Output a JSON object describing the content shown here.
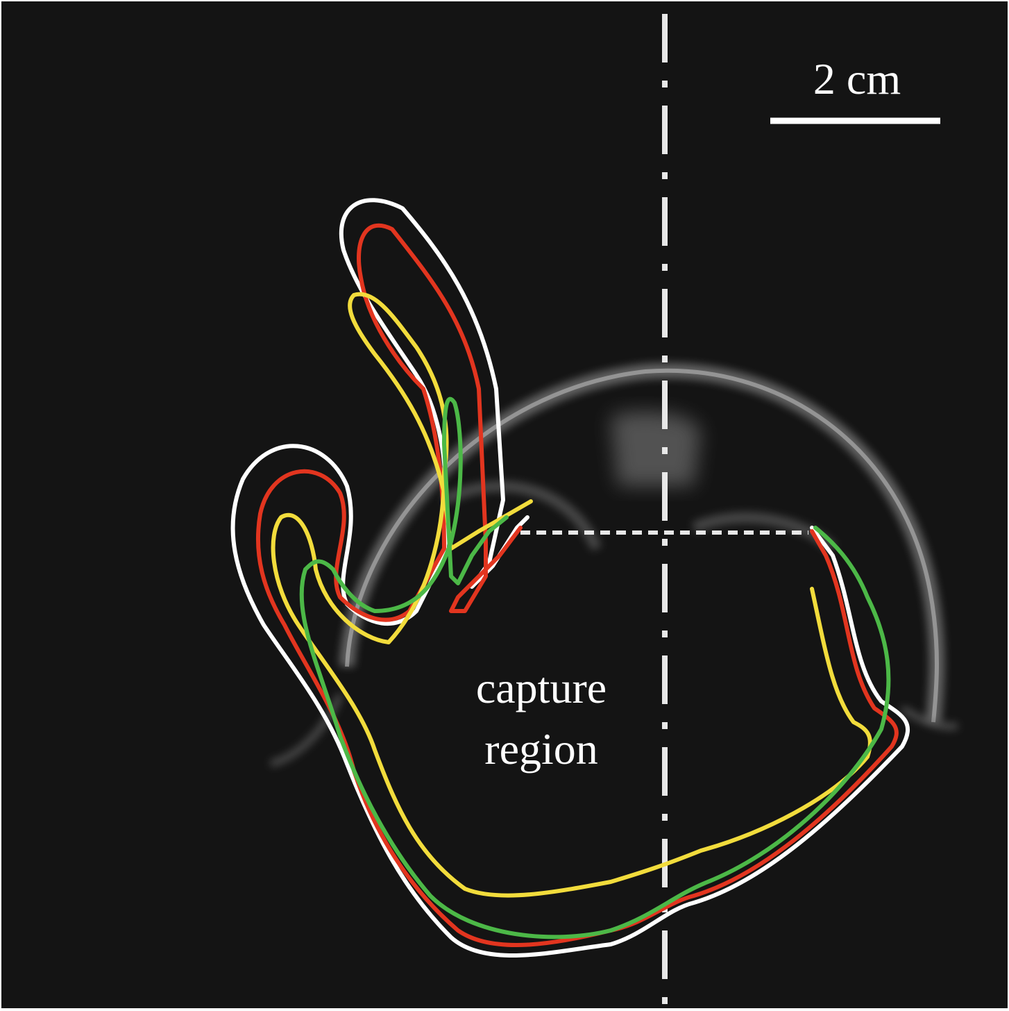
{
  "scale_bar": {
    "label": "2 cm"
  },
  "region_label": {
    "line1": "capture",
    "line2": "region"
  },
  "colors": {
    "background": "#141414",
    "bell": "#cfcfcf",
    "outline_white": "#ffffff",
    "outline_red": "#e2351f",
    "outline_yellow": "#f2dc3c",
    "outline_green": "#4cb847",
    "axis_line": "#e8e8e8"
  },
  "outlines": [
    {
      "color_key": "outline_white"
    },
    {
      "color_key": "outline_red"
    },
    {
      "color_key": "outline_yellow"
    },
    {
      "color_key": "outline_green"
    }
  ]
}
